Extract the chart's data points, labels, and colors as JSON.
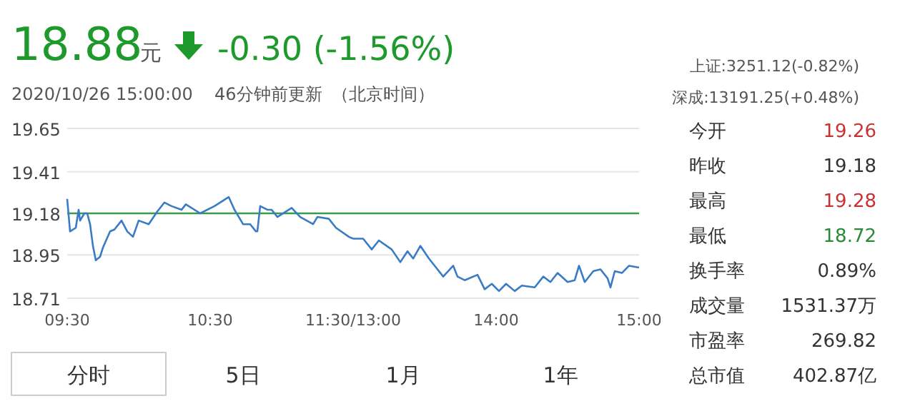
{
  "chart_data": [
    {
      "type": "other",
      "annotations": [
        "18.88",
        "元",
        "-0.30 (-1.56%)",
        "2020/10/26 15:00:00",
        "46分钟前更新",
        "（北京时间）",
        "上证:3251.12(-0.82%)",
        "深成:13191.25(+0.48%)"
      ]
    },
    {
      "type": "line",
      "x": [
        9.5,
        9.52,
        9.56,
        9.58,
        9.59,
        9.62,
        9.64,
        9.66,
        9.68,
        9.7,
        9.73,
        9.75,
        9.8,
        9.83,
        9.88,
        9.92,
        9.96,
        10,
        10.07,
        10.13,
        10.18,
        10.23,
        10.3,
        10.33,
        10.43,
        10.53,
        10.63,
        10.67,
        10.73,
        10.78,
        10.82,
        10.83,
        10.85,
        10.9,
        10.93,
        10.97,
        11.07,
        11.13,
        11.22,
        11.25,
        11.33,
        11.38,
        11.47,
        11.5
      ],
      "series": [
        {
          "color": "#3a7cc4",
          "values": [
            19.26,
            19.08,
            19.1,
            19.2,
            19.14,
            19.18,
            19.18,
            19.12,
            19.0,
            18.92,
            18.94,
            18.99,
            19.08,
            19.09,
            19.14,
            19.08,
            19.05,
            19.14,
            19.12,
            19.19,
            19.24,
            19.22,
            19.2,
            19.23,
            19.18,
            19.22,
            19.27,
            19.2,
            19.12,
            19.12,
            19.08,
            19.08,
            19.22,
            19.2,
            19.2,
            19.16,
            19.21,
            19.16,
            19.12,
            19.16,
            19.15,
            19.1,
            19.05,
            19.04
          ]
        }
      ],
      "xlim": [
        9.5,
        11.5
      ],
      "xticks": [
        {
          "value": 9.5,
          "label": "09:30"
        },
        {
          "value": 10.5,
          "label": "10:30"
        },
        {
          "value": 11.5,
          "label": "11:30/13:00"
        }
      ],
      "ylim": [
        18.71,
        19.65
      ],
      "yticks": [
        18.71,
        18.95,
        19.18,
        19.41,
        19.65
      ],
      "grid": "y",
      "marker": "none",
      "line_style": "solid",
      "ref_lines": [
        {
          "axis": "y",
          "value": 19.18,
          "color": "#3a9a4a"
        }
      ],
      "annotations": [
        "分时",
        "5日",
        "1月",
        "1年"
      ]
    },
    {
      "type": "line",
      "x": [
        13,
        13.07,
        13.13,
        13.18,
        13.27,
        13.33,
        13.38,
        13.42,
        13.47,
        13.53,
        13.6,
        13.63,
        13.7,
        13.73,
        13.78,
        13.87,
        13.92,
        13.97,
        14.02,
        14.07,
        14.13,
        14.18,
        14.27,
        14.33,
        14.38,
        14.43,
        14.5,
        14.55,
        14.58,
        14.62,
        14.68,
        14.73,
        14.78,
        14.8,
        14.83,
        14.88,
        14.93,
        15
      ],
      "series": [
        {
          "color": "#3a7cc4",
          "values": [
            19.04,
            19.04,
            18.98,
            19.03,
            18.98,
            18.91,
            18.97,
            18.93,
            19.0,
            18.93,
            18.86,
            18.83,
            18.89,
            18.83,
            18.81,
            18.84,
            18.76,
            18.79,
            18.75,
            18.79,
            18.75,
            18.78,
            18.77,
            18.83,
            18.8,
            18.85,
            18.8,
            18.81,
            18.89,
            18.8,
            18.86,
            18.87,
            18.82,
            18.77,
            18.86,
            18.85,
            18.89,
            18.88
          ]
        }
      ],
      "xlim": [
        13,
        15
      ],
      "xticks": [
        {
          "value": 14,
          "label": "14:00"
        },
        {
          "value": 15,
          "label": "15:00"
        }
      ],
      "ylim": [
        18.71,
        19.65
      ],
      "yticks": [
        18.71,
        18.95,
        19.18,
        19.41,
        19.65
      ],
      "tick_labels": "x",
      "grid": "y",
      "marker": "none",
      "line_style": "solid",
      "ref_lines": [
        {
          "axis": "y",
          "value": 19.18,
          "color": "#3a9a4a"
        }
      ]
    },
    {
      "type": "other",
      "annotations": [
        "今开",
        "19.26",
        "昨收",
        "19.18",
        "最高",
        "19.28",
        "最低",
        "18.72",
        "换手率",
        "0.89%",
        "成交量",
        "1531.37万",
        "市盈率",
        "269.82",
        "总市值",
        "402.87亿"
      ]
    }
  ]
}
